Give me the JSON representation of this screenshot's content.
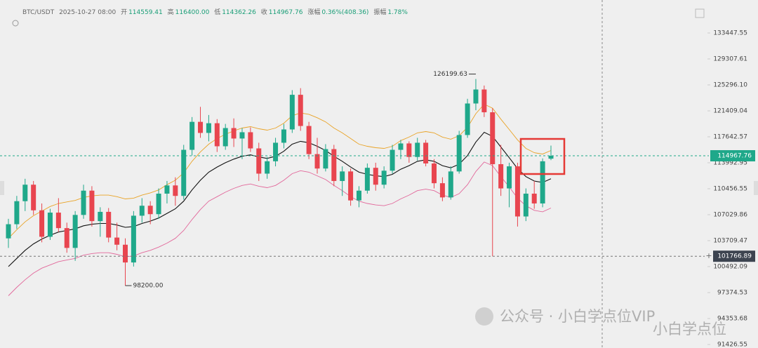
{
  "header": {
    "symbol": "BTC/USDT",
    "time": "2025-10-27 08:00",
    "fields": [
      {
        "label": "开",
        "value": "114559.41"
      },
      {
        "label": "高",
        "value": "116400.00"
      },
      {
        "label": "低",
        "value": "114362.26"
      },
      {
        "label": "收",
        "value": "114967.76"
      },
      {
        "label": "涨幅",
        "value": "0.36%(408.36)"
      },
      {
        "label": "振幅",
        "value": "1.78%"
      }
    ]
  },
  "watermark": {
    "account": "公众号 · 小白学点位VIP",
    "badge": "小白学点位"
  },
  "chart_data": {
    "type": "candlestick",
    "log_scale": true,
    "ylim": [
      91426.55,
      137720
    ],
    "yticks": [
      133447.55,
      129307.61,
      {
        "value": 125296.1,
        "label": "125296.10"
      },
      121409.04,
      117642.57,
      113992.95,
      110456.55,
      107029.86,
      103709.47,
      100492.09,
      97374.53,
      94353.68,
      91426.55
    ],
    "up_color": "#1fa88a",
    "down_color": "#e8454f",
    "open": [
      104000,
      105800,
      108800,
      111000,
      107600,
      104200,
      107300,
      105300,
      102800,
      107000,
      110200,
      106200,
      107400,
      104100,
      103200,
      101000,
      106900,
      108200,
      107100,
      109800,
      110900,
      109500,
      115800,
      119800,
      118200,
      119600,
      116300,
      118900,
      117400,
      118300,
      116000,
      112500,
      114200,
      116800,
      118700,
      123800,
      119200,
      115200,
      113200,
      115900,
      111500,
      112800,
      108900,
      110200,
      113300,
      111000,
      112900,
      115800,
      116700,
      114800,
      116800,
      113900,
      111200,
      109300,
      112800,
      117900,
      122500,
      124600,
      121200,
      113800,
      110500,
      113500,
      106800,
      109800,
      108500,
      114559.41
    ],
    "high": [
      106500,
      109500,
      111800,
      111500,
      108500,
      107800,
      109200,
      106000,
      107500,
      111000,
      110800,
      108000,
      107900,
      106000,
      104000,
      107500,
      109200,
      108800,
      110500,
      111500,
      112000,
      116500,
      120500,
      122000,
      120800,
      120200,
      119500,
      120300,
      118900,
      119000,
      116800,
      114800,
      117500,
      119500,
      124500,
      124800,
      119800,
      117500,
      116600,
      116500,
      113500,
      113200,
      110800,
      113900,
      114000,
      113500,
      116500,
      117200,
      117000,
      117500,
      117200,
      114500,
      112000,
      113500,
      118500,
      123200,
      126199.63,
      125200,
      121800,
      116500,
      114000,
      114000,
      110500,
      111500,
      114600,
      116400
    ],
    "low": [
      102800,
      105200,
      107500,
      107000,
      103500,
      103800,
      104800,
      102200,
      101200,
      106500,
      105500,
      104200,
      103500,
      102500,
      98200,
      100500,
      106000,
      105800,
      106500,
      108500,
      108200,
      109000,
      115000,
      117500,
      117000,
      115500,
      115800,
      116200,
      114500,
      115500,
      111500,
      111800,
      113500,
      116000,
      118200,
      118500,
      114500,
      112500,
      112800,
      110800,
      109500,
      108200,
      108000,
      109800,
      110200,
      110500,
      112500,
      114500,
      114000,
      114300,
      113500,
      110500,
      108800,
      109000,
      112500,
      117500,
      121500,
      120500,
      101766.89,
      109500,
      108000,
      105500,
      106200,
      107800,
      108000,
      114362.26
    ],
    "close": [
      105800,
      108800,
      111000,
      107600,
      104200,
      107300,
      105300,
      102800,
      107000,
      110200,
      106200,
      107400,
      104100,
      103200,
      101000,
      106900,
      108200,
      107100,
      109800,
      110900,
      109500,
      115800,
      119800,
      118200,
      119600,
      116300,
      118900,
      117400,
      118300,
      116000,
      112500,
      114200,
      116800,
      118700,
      123800,
      119200,
      115200,
      113200,
      115900,
      111500,
      112800,
      108900,
      110200,
      113300,
      111000,
      112900,
      115800,
      116700,
      114800,
      116800,
      113900,
      111200,
      109300,
      112800,
      117900,
      122500,
      124600,
      121200,
      113800,
      110500,
      113500,
      106800,
      109800,
      108500,
      114200,
      114967.76
    ],
    "series": [
      {
        "color": "#e9a326",
        "values": [
          104000,
          105100,
          106100,
          106900,
          107500,
          108100,
          108500,
          108700,
          108900,
          109300,
          109500,
          109600,
          109600,
          109400,
          109100,
          109200,
          109600,
          109900,
          110300,
          111000,
          111600,
          112600,
          114200,
          115500,
          116600,
          117400,
          118000,
          118500,
          118900,
          119100,
          118800,
          118600,
          118900,
          119600,
          120700,
          121100,
          120900,
          120400,
          119800,
          118900,
          118200,
          117400,
          116600,
          116300,
          116100,
          116000,
          116300,
          117100,
          117600,
          118200,
          118400,
          118200,
          117600,
          117300,
          117800,
          119000,
          121000,
          122400,
          121800,
          120200,
          118700,
          117200,
          116000,
          115400,
          115200,
          115700
        ]
      },
      {
        "color": "#111111",
        "values": [
          100500,
          101500,
          102500,
          103300,
          103900,
          104400,
          104800,
          105000,
          105200,
          105600,
          105800,
          105900,
          105900,
          105700,
          105400,
          105500,
          105900,
          106200,
          106600,
          107200,
          107800,
          108800,
          110300,
          111600,
          112700,
          113400,
          114000,
          114500,
          114900,
          115100,
          114800,
          114600,
          114900,
          115600,
          116600,
          117000,
          116800,
          116300,
          115700,
          114900,
          114200,
          113400,
          112700,
          112400,
          112200,
          112100,
          112400,
          113100,
          113600,
          114200,
          114400,
          114200,
          113600,
          113300,
          113800,
          115000,
          116900,
          118300,
          117700,
          116200,
          114700,
          113200,
          112100,
          111500,
          111300,
          111800
        ]
      },
      {
        "color": "#e2679a",
        "values": [
          97000,
          98000,
          98900,
          99700,
          100300,
          100700,
          101100,
          101300,
          101500,
          101900,
          102100,
          102200,
          102200,
          102000,
          101700,
          101800,
          102200,
          102500,
          102900,
          103400,
          104000,
          105000,
          106400,
          107700,
          108800,
          109400,
          110000,
          110500,
          110900,
          111100,
          110800,
          110600,
          110900,
          111600,
          112500,
          112900,
          112700,
          112200,
          111700,
          110900,
          110200,
          109400,
          108800,
          108500,
          108300,
          108200,
          108500,
          109100,
          109600,
          110200,
          110400,
          110200,
          109600,
          109300,
          109800,
          111000,
          112800,
          114100,
          113600,
          112100,
          110700,
          109200,
          108200,
          107600,
          107400,
          107900
        ]
      }
    ],
    "current_price": 114967.76,
    "crosshair_price": 101766.89,
    "annotations": {
      "high": "126199.63",
      "low": "98200.00"
    }
  }
}
